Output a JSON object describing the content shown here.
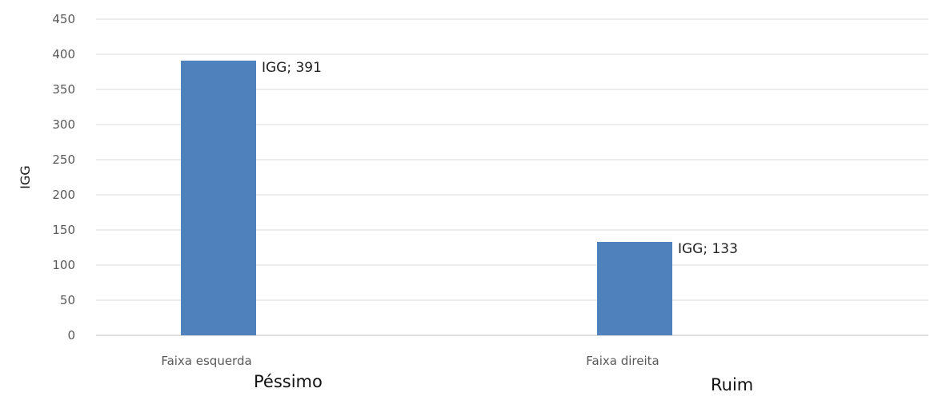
{
  "chart_data": {
    "type": "bar",
    "title": "",
    "xlabel": "",
    "ylabel": "IGG",
    "ylim": [
      0,
      450
    ],
    "yticks": [
      0,
      50,
      100,
      150,
      200,
      250,
      300,
      350,
      400,
      450
    ],
    "categories": [
      "Faixa esquerda",
      "Faixa direita"
    ],
    "values": [
      391,
      133
    ],
    "data_labels": [
      "IGG; 391",
      "IGG; 133"
    ],
    "grid": true,
    "bar_color": "#4f81bd"
  },
  "sublabels": [
    "Péssimo",
    "Ruim"
  ]
}
